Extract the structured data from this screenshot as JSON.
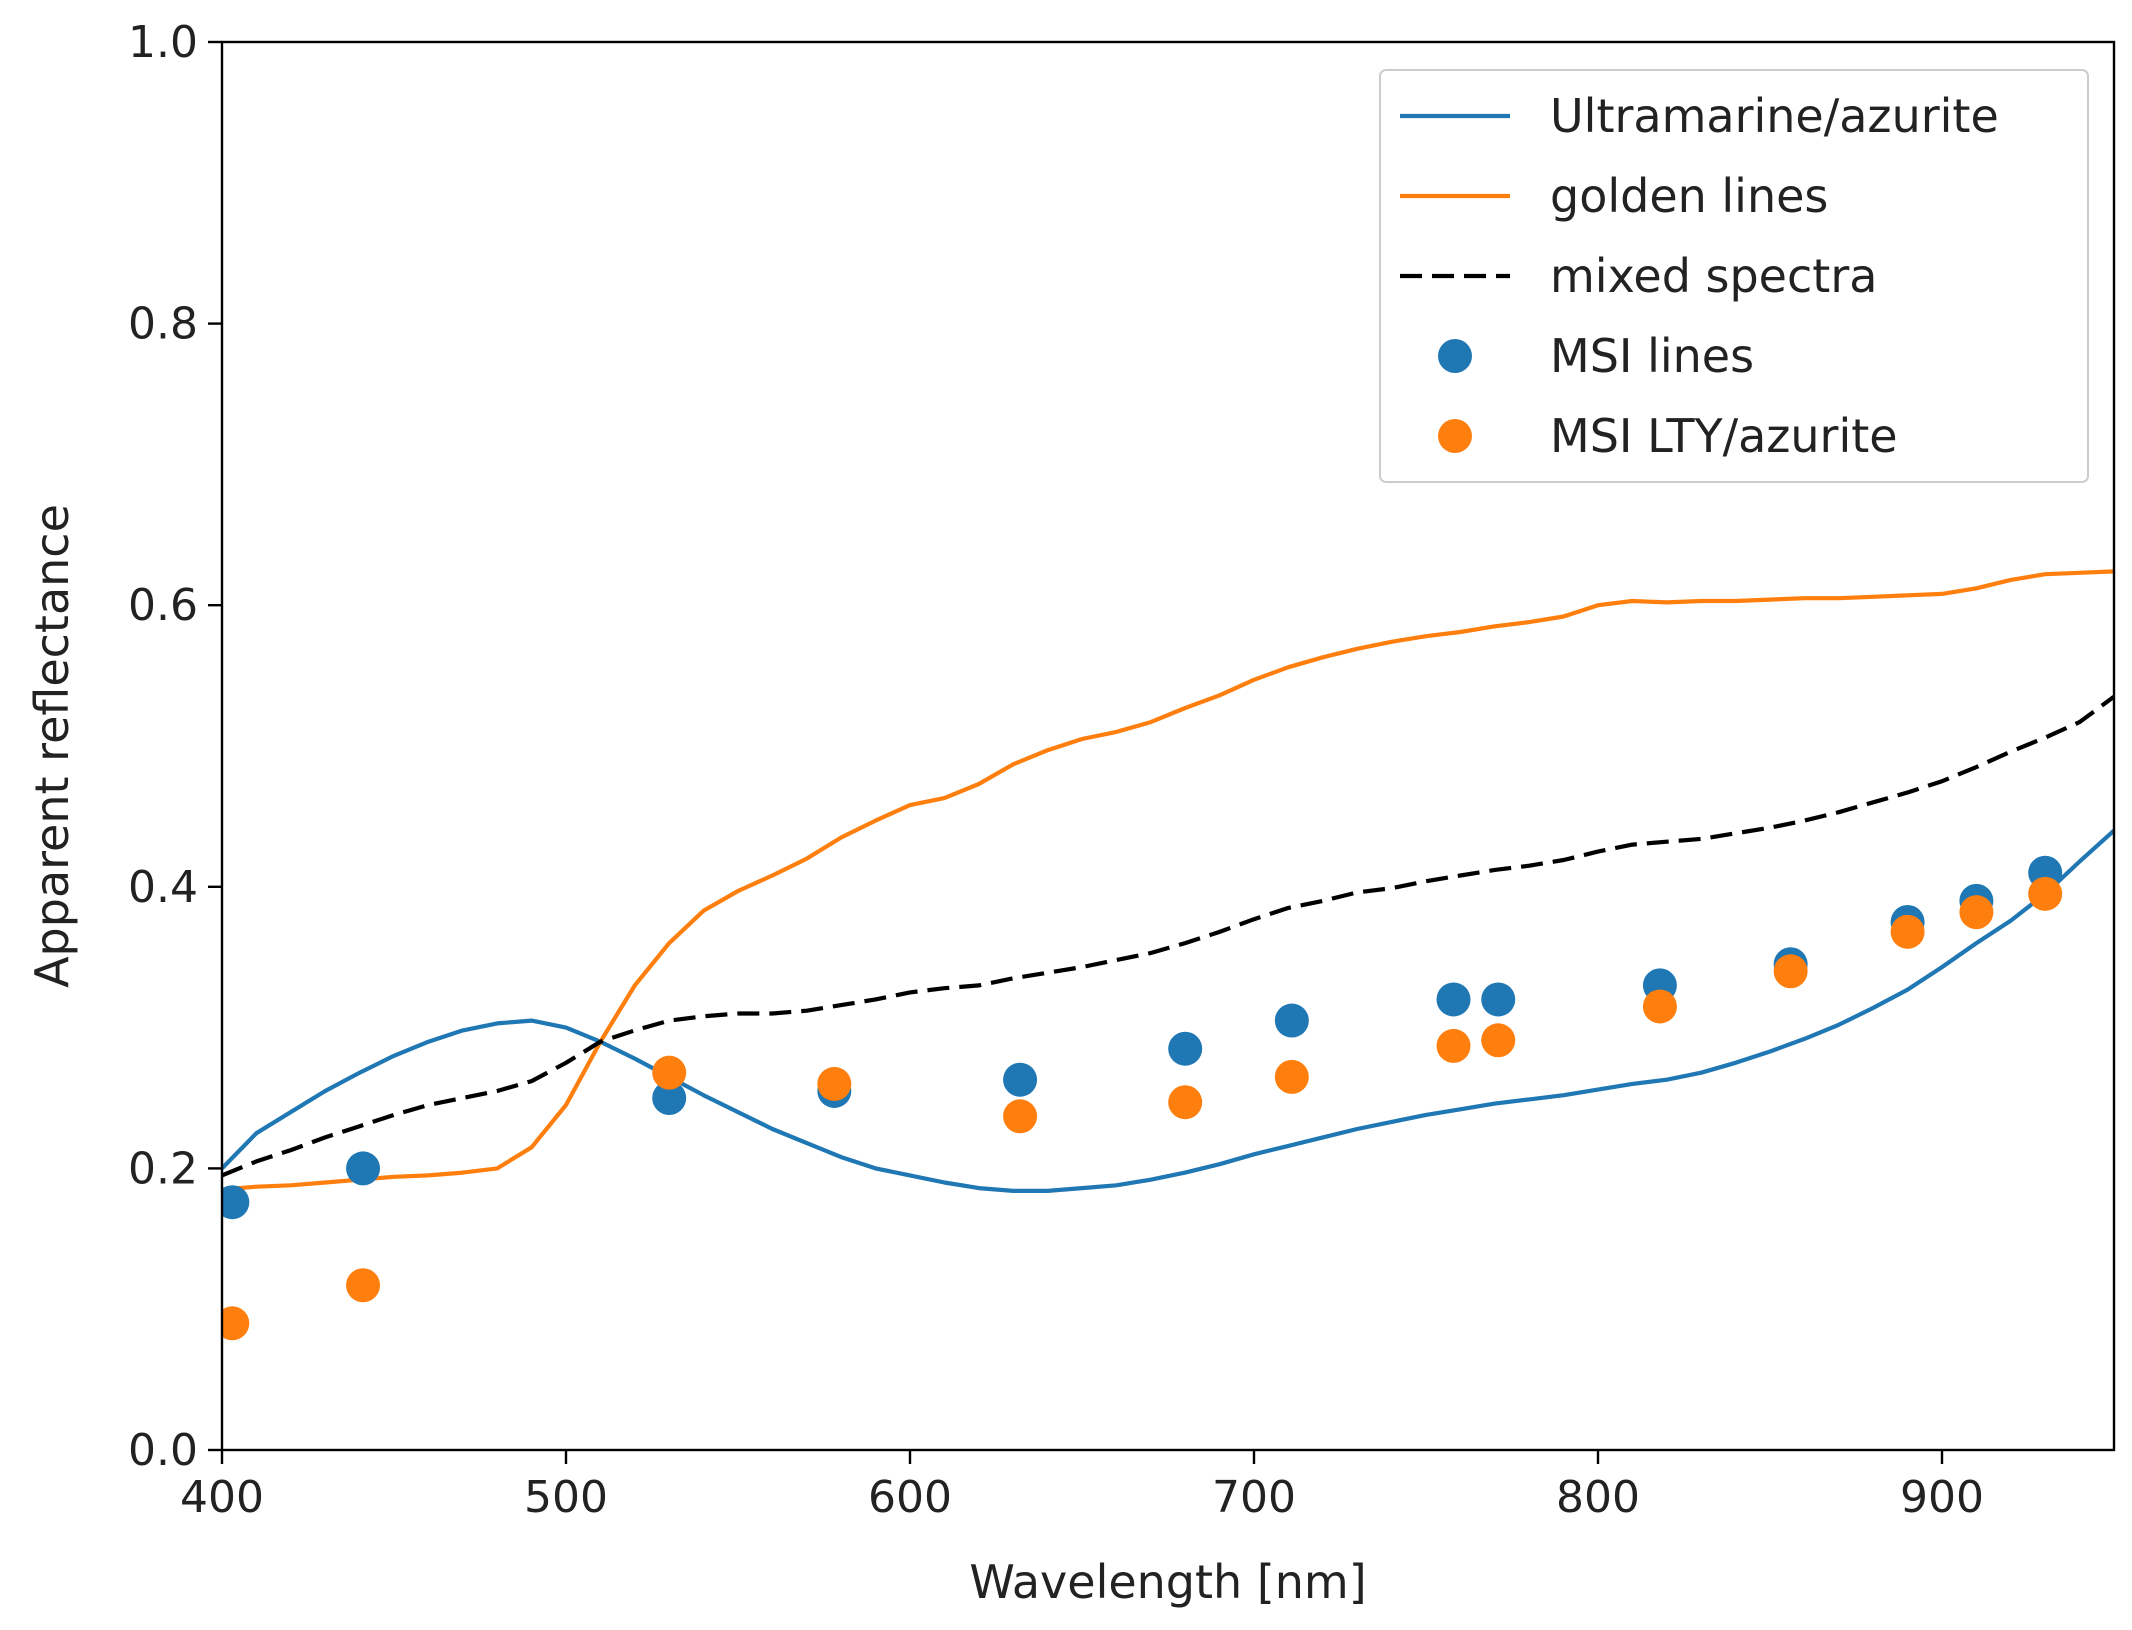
{
  "chart_data": {
    "type": "line",
    "xlabel": "Wavelength [nm]",
    "ylabel": "Apparent reflectance",
    "xlim": [
      400,
      950
    ],
    "ylim": [
      0.0,
      1.0
    ],
    "x_ticks": [
      "400",
      "500",
      "600",
      "700",
      "800",
      "900"
    ],
    "x_tick_values": [
      400,
      500,
      600,
      700,
      800,
      900
    ],
    "y_ticks": [
      "0.0",
      "0.2",
      "0.4",
      "0.6",
      "0.8",
      "1.0"
    ],
    "y_tick_values": [
      0.0,
      0.2,
      0.4,
      0.6,
      0.8,
      1.0
    ],
    "grid": false,
    "legend_position": "top-right",
    "series": [
      {
        "name": "Ultramarine/azurite",
        "kind": "line",
        "style": "solid",
        "color": "#1f77b4",
        "x": [
          400,
          410,
          420,
          430,
          440,
          450,
          460,
          470,
          480,
          490,
          500,
          510,
          520,
          530,
          540,
          550,
          560,
          570,
          580,
          590,
          600,
          610,
          620,
          630,
          640,
          650,
          660,
          670,
          680,
          690,
          700,
          710,
          720,
          730,
          740,
          750,
          760,
          770,
          780,
          790,
          800,
          810,
          820,
          830,
          840,
          850,
          860,
          870,
          880,
          890,
          900,
          910,
          920,
          930,
          940,
          950
        ],
        "y": [
          0.2,
          0.225,
          0.24,
          0.255,
          0.268,
          0.28,
          0.29,
          0.298,
          0.303,
          0.305,
          0.3,
          0.29,
          0.278,
          0.265,
          0.252,
          0.24,
          0.228,
          0.218,
          0.208,
          0.2,
          0.195,
          0.19,
          0.186,
          0.184,
          0.184,
          0.186,
          0.188,
          0.192,
          0.197,
          0.203,
          0.21,
          0.216,
          0.222,
          0.228,
          0.233,
          0.238,
          0.242,
          0.246,
          0.249,
          0.252,
          0.256,
          0.26,
          0.263,
          0.268,
          0.275,
          0.283,
          0.292,
          0.302,
          0.314,
          0.327,
          0.343,
          0.36,
          0.376,
          0.395,
          0.418,
          0.44
        ]
      },
      {
        "name": "golden lines",
        "kind": "line",
        "style": "solid",
        "color": "#ff7f0e",
        "x": [
          400,
          410,
          420,
          430,
          440,
          450,
          460,
          470,
          480,
          490,
          500,
          510,
          520,
          530,
          540,
          550,
          560,
          570,
          580,
          590,
          600,
          610,
          620,
          630,
          640,
          650,
          660,
          670,
          680,
          690,
          700,
          710,
          720,
          730,
          740,
          750,
          760,
          770,
          780,
          790,
          800,
          810,
          820,
          830,
          840,
          850,
          860,
          870,
          880,
          890,
          900,
          910,
          920,
          930,
          940,
          950
        ],
        "y": [
          0.185,
          0.187,
          0.188,
          0.19,
          0.192,
          0.194,
          0.195,
          0.197,
          0.2,
          0.215,
          0.245,
          0.29,
          0.33,
          0.36,
          0.383,
          0.397,
          0.408,
          0.42,
          0.435,
          0.447,
          0.458,
          0.463,
          0.473,
          0.487,
          0.497,
          0.505,
          0.51,
          0.517,
          0.527,
          0.536,
          0.547,
          0.556,
          0.563,
          0.569,
          0.574,
          0.578,
          0.581,
          0.585,
          0.588,
          0.592,
          0.6,
          0.603,
          0.602,
          0.603,
          0.603,
          0.604,
          0.605,
          0.605,
          0.606,
          0.607,
          0.608,
          0.612,
          0.618,
          0.622,
          0.623,
          0.624
        ]
      },
      {
        "name": "mixed spectra",
        "kind": "line",
        "style": "dashed",
        "color": "#000000",
        "x": [
          400,
          410,
          420,
          430,
          440,
          450,
          460,
          470,
          480,
          490,
          500,
          510,
          520,
          530,
          540,
          550,
          560,
          570,
          580,
          590,
          600,
          610,
          620,
          630,
          640,
          650,
          660,
          670,
          680,
          690,
          700,
          710,
          720,
          730,
          740,
          750,
          760,
          770,
          780,
          790,
          800,
          810,
          820,
          830,
          840,
          850,
          860,
          870,
          880,
          890,
          900,
          910,
          920,
          930,
          940,
          950
        ],
        "y": [
          0.195,
          0.205,
          0.213,
          0.222,
          0.23,
          0.238,
          0.245,
          0.25,
          0.255,
          0.262,
          0.275,
          0.29,
          0.298,
          0.305,
          0.308,
          0.31,
          0.31,
          0.312,
          0.316,
          0.32,
          0.325,
          0.328,
          0.33,
          0.335,
          0.339,
          0.343,
          0.348,
          0.353,
          0.36,
          0.368,
          0.377,
          0.385,
          0.39,
          0.396,
          0.399,
          0.404,
          0.408,
          0.412,
          0.415,
          0.419,
          0.425,
          0.43,
          0.432,
          0.434,
          0.438,
          0.442,
          0.447,
          0.453,
          0.46,
          0.467,
          0.475,
          0.485,
          0.496,
          0.506,
          0.517,
          0.535
        ]
      },
      {
        "name": "MSI lines",
        "kind": "scatter",
        "color": "#1f77b4",
        "x": [
          403,
          441,
          530,
          578,
          632,
          680,
          711,
          758,
          771,
          818,
          856,
          890,
          910,
          930
        ],
        "y": [
          0.176,
          0.2,
          0.25,
          0.255,
          0.263,
          0.285,
          0.305,
          0.32,
          0.32,
          0.33,
          0.345,
          0.375,
          0.39,
          0.41
        ]
      },
      {
        "name": "MSI LTY/azurite",
        "kind": "scatter",
        "color": "#ff7f0e",
        "x": [
          403,
          441,
          530,
          578,
          632,
          680,
          711,
          758,
          771,
          818,
          856,
          890,
          910,
          930
        ],
        "y": [
          0.09,
          0.117,
          0.268,
          0.26,
          0.237,
          0.247,
          0.265,
          0.287,
          0.291,
          0.315,
          0.34,
          0.368,
          0.382,
          0.395
        ]
      }
    ]
  }
}
